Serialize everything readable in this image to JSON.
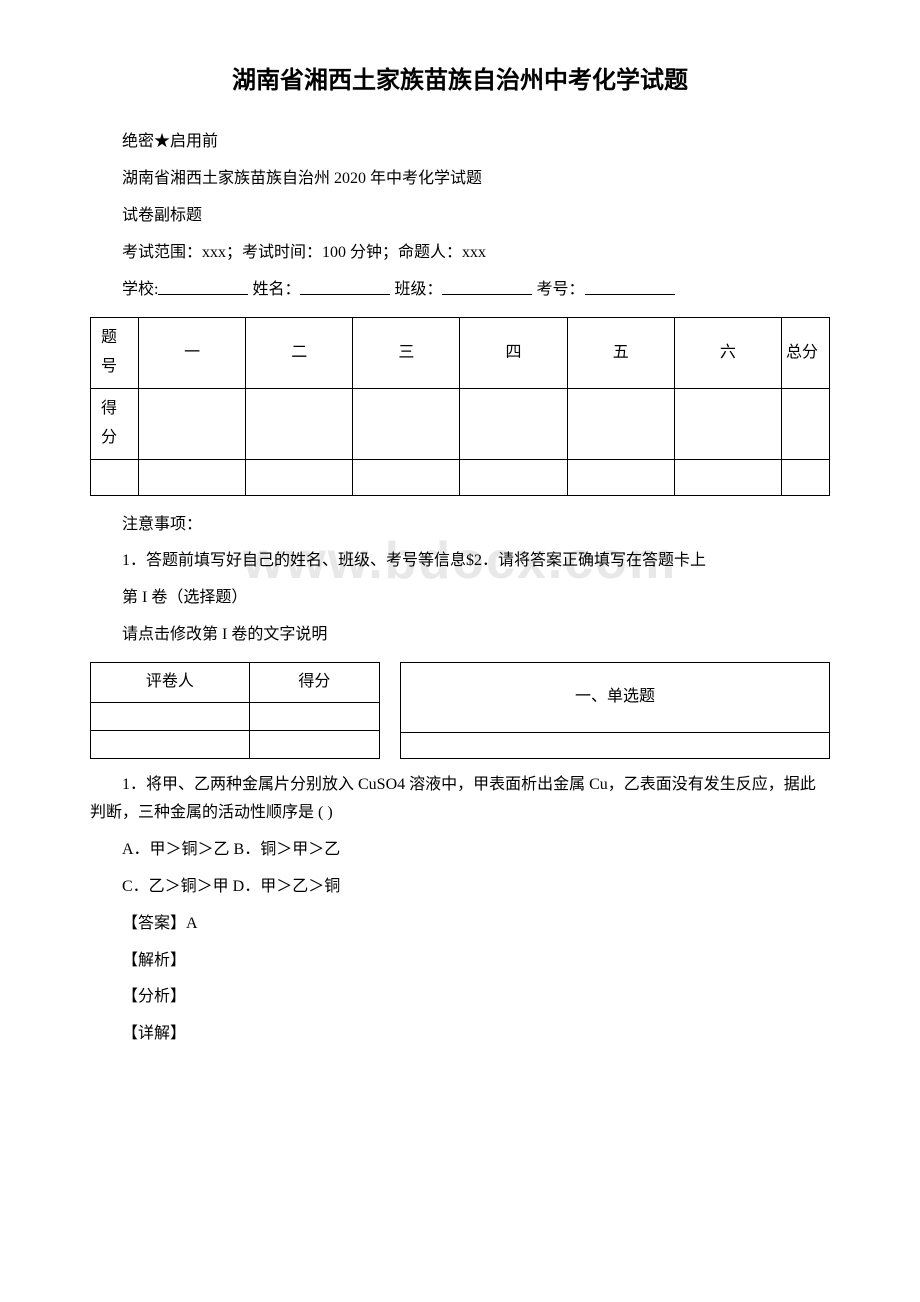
{
  "title": "湖南省湘西土家族苗族自治州中考化学试题",
  "header": {
    "secrecy": "绝密★启用前",
    "exam_name": "湖南省湘西土家族苗族自治州 2020 年中考化学试题",
    "subtitle": "试卷副标题",
    "scope_line": "考试范围：xxx；考试时间：100 分钟；命题人：xxx",
    "school_label": "学校:",
    "name_label": "姓名：",
    "class_label": "班级：",
    "exam_no_label": "考号："
  },
  "score_table": {
    "row1_label": "题号",
    "row2_label": "得分",
    "cols": [
      "一",
      "二",
      "三",
      "四",
      "五",
      "六"
    ],
    "last_col": "总分"
  },
  "notice": {
    "heading": "注意事项：",
    "line1": "1．答题前填写好自己的姓名、班级、考号等信息$2．请将答案正确填写在答题卡上",
    "part1_label": "第 I 卷（选择题）",
    "part1_instruction": "请点击修改第 I 卷的文字说明"
  },
  "grader": {
    "reviewer": "评卷人",
    "score": "得分"
  },
  "section1_title": "一、单选题",
  "q1": {
    "stem": "1．将甲、乙两种金属片分别放入 CuSO4 溶液中，甲表面析出金属 Cu，乙表面没有发生反应，据此判断，三种金属的活动性顺序是 ( )",
    "optA": "A．甲＞铜＞乙 B．铜＞甲＞乙",
    "optC": "C．乙＞铜＞甲 D．甲＞乙＞铜",
    "answer": "【答案】A",
    "analysis": "【解析】",
    "analyze": "【分析】",
    "detail": "【详解】"
  },
  "watermark_text": "www.bdocx.com"
}
